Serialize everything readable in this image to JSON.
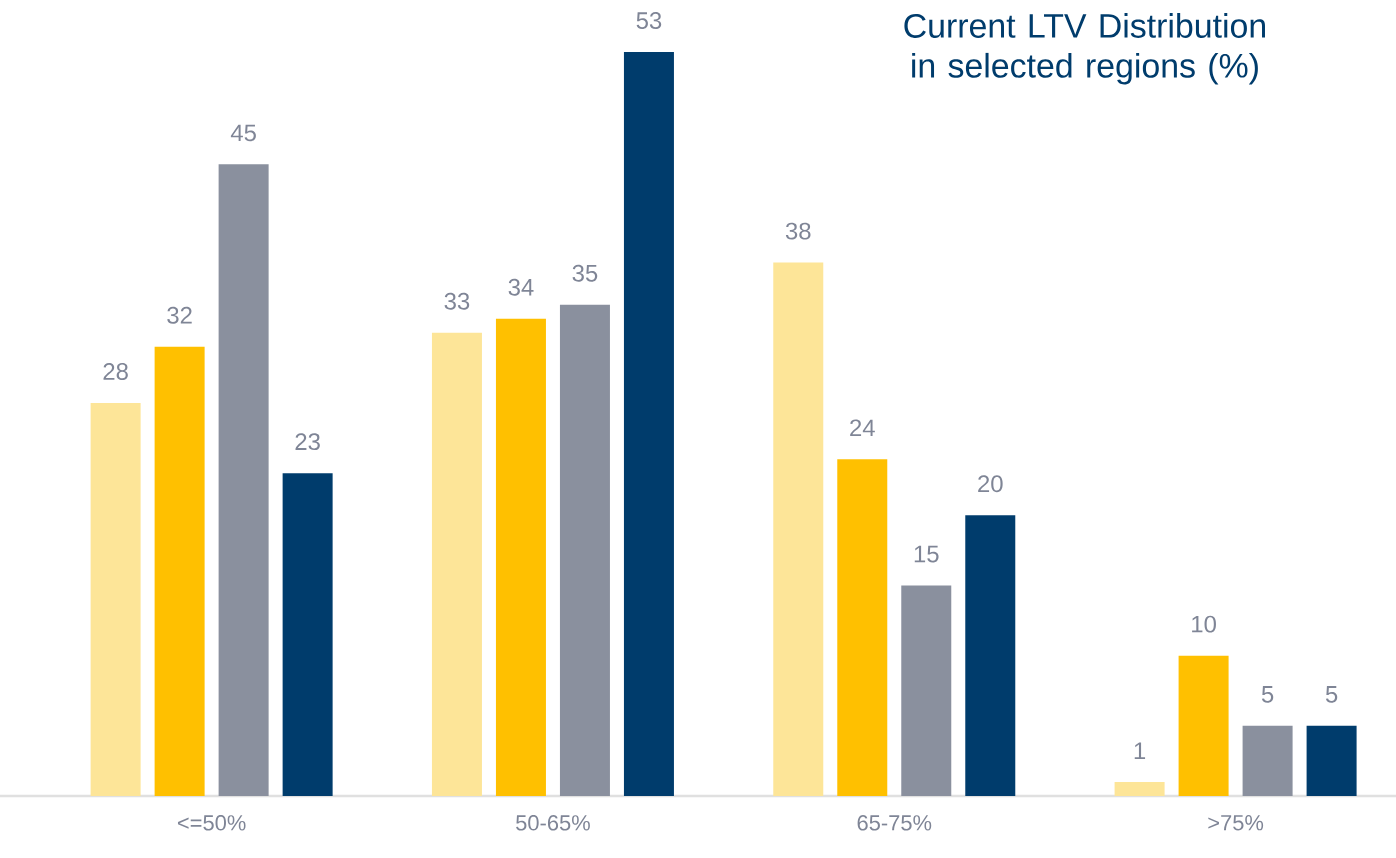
{
  "chart_data": {
    "type": "bar",
    "title": "Current LTV Distribution in selected regions (%)",
    "categories": [
      "<=50%",
      "50-65%",
      "65-75%",
      ">75%"
    ],
    "series": [
      {
        "color": "#fde598",
        "values": [
          28,
          33,
          38,
          1
        ]
      },
      {
        "color": "#ffc000",
        "values": [
          32,
          34,
          24,
          10
        ]
      },
      {
        "color": "#8a909e",
        "values": [
          45,
          35,
          15,
          5
        ]
      },
      {
        "color": "#003c6c",
        "values": [
          23,
          53,
          20,
          5
        ]
      }
    ],
    "data_labels": true
  }
}
